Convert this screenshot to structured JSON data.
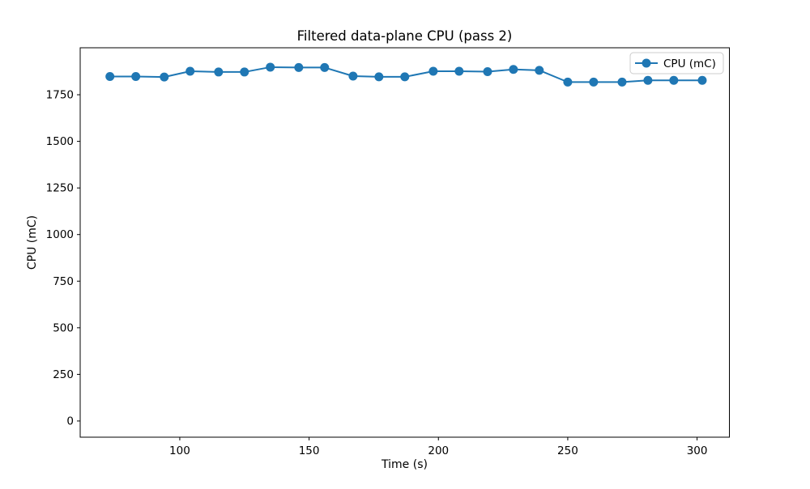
{
  "figure": {
    "background": "#ffffff"
  },
  "chart_data": {
    "type": "line",
    "title": "Filtered data-plane CPU (pass 2)",
    "xlabel": "Time (s)",
    "ylabel": "CPU (mC)",
    "grid": false,
    "legend": {
      "position": "upper right",
      "entries": [
        "CPU (mC)"
      ]
    },
    "axes": {
      "xlim": [
        61.5,
        312.5
      ],
      "ylim": [
        -87,
        2002
      ],
      "x_ticks": [
        100,
        150,
        200,
        250,
        300
      ],
      "y_ticks": [
        0,
        250,
        500,
        750,
        1000,
        1250,
        1500,
        1750
      ]
    },
    "series": [
      {
        "name": "CPU (mC)",
        "color": "#1f77b4",
        "marker": "circle",
        "x": [
          73,
          83,
          94,
          104,
          115,
          125,
          135,
          146,
          156,
          167,
          177,
          187,
          198,
          208,
          219,
          229,
          239,
          250,
          260,
          271,
          281,
          291,
          302
        ],
        "y": [
          1848,
          1848,
          1845,
          1876,
          1872,
          1872,
          1898,
          1896,
          1896,
          1850,
          1846,
          1846,
          1876,
          1876,
          1874,
          1886,
          1881,
          1818,
          1818,
          1818,
          1827,
          1827,
          1827
        ]
      }
    ]
  }
}
